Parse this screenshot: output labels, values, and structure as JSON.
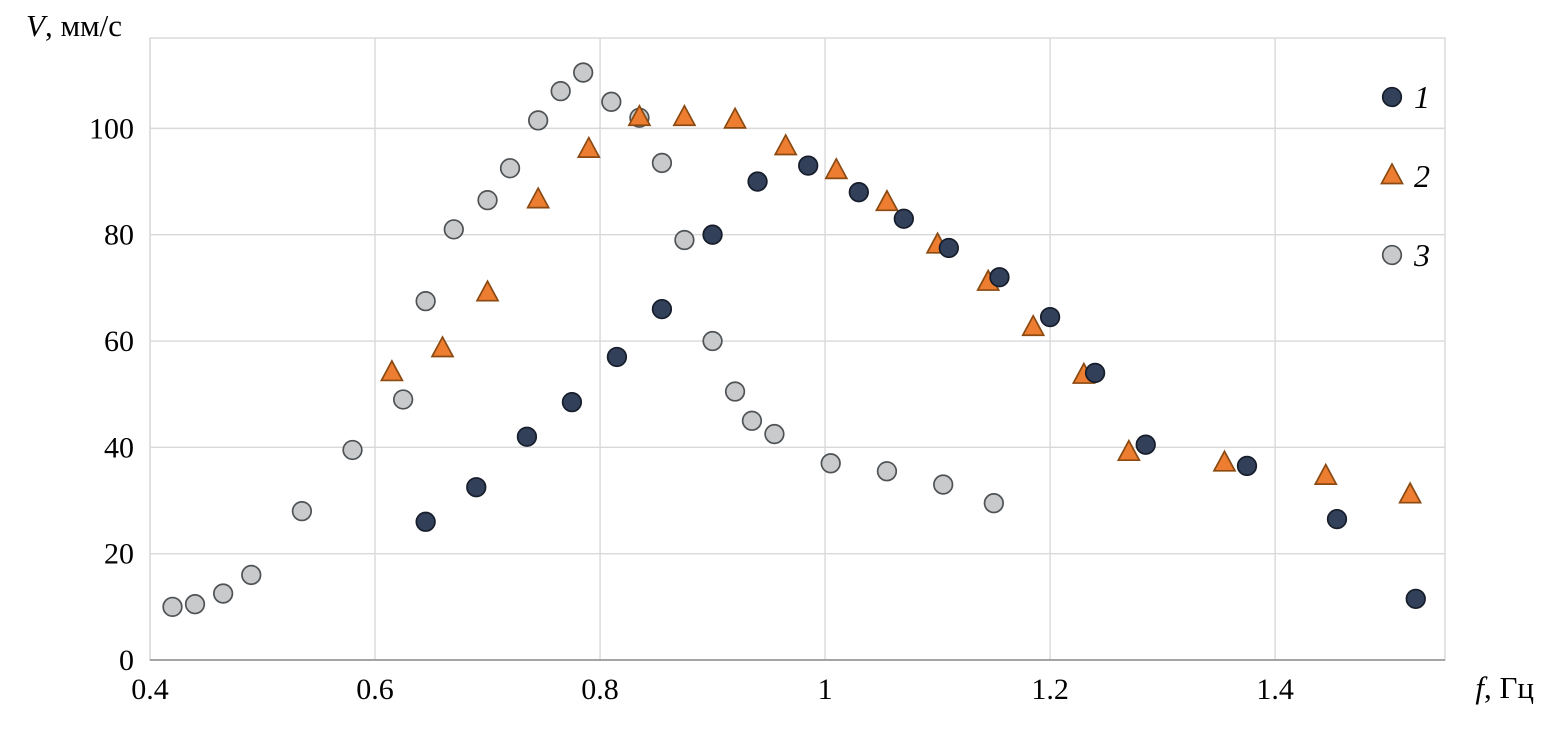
{
  "chart_data": {
    "type": "scatter",
    "title": "",
    "xlabel": "f, Гц",
    "ylabel": "V, мм/с",
    "xlabel_var": "f",
    "xlabel_rest": ", Гц",
    "ylabel_var": "V",
    "ylabel_rest": ", мм/с",
    "xlim": [
      0.4,
      1.551
    ],
    "ylim": [
      0,
      117
    ],
    "x_ticks": [
      0.4,
      0.6,
      0.8,
      1.0,
      1.2,
      1.4
    ],
    "x_tick_labels": [
      "0.4",
      "0.6",
      "0.8",
      "1",
      "1.2",
      "1.4"
    ],
    "y_ticks": [
      0,
      20,
      40,
      60,
      80,
      100
    ],
    "y_tick_labels": [
      "0",
      "20",
      "40",
      "60",
      "80",
      "100"
    ],
    "grid": true,
    "legend_position": "top-right",
    "colors": {
      "grid": "#d9d9d9",
      "axis": "#8c8c8c",
      "text": "#000000",
      "background": "#ffffff"
    },
    "series": [
      {
        "name": "1",
        "marker": "circle",
        "fill": "#33405A",
        "stroke": "#161D2B",
        "points": [
          [
            0.645,
            26
          ],
          [
            0.69,
            32.5
          ],
          [
            0.735,
            42
          ],
          [
            0.775,
            48.5
          ],
          [
            0.815,
            57
          ],
          [
            0.855,
            66
          ],
          [
            0.9,
            80
          ],
          [
            0.94,
            90
          ],
          [
            0.985,
            93
          ],
          [
            1.03,
            88
          ],
          [
            1.07,
            83
          ],
          [
            1.11,
            77.5
          ],
          [
            1.155,
            72
          ],
          [
            1.2,
            64.5
          ],
          [
            1.24,
            54
          ],
          [
            1.285,
            40.5
          ],
          [
            1.375,
            36.5
          ],
          [
            1.455,
            26.5
          ],
          [
            1.525,
            11.5
          ]
        ]
      },
      {
        "name": "2",
        "marker": "triangle",
        "fill": "#ED7D31",
        "stroke": "#8A4A12",
        "points": [
          [
            0.615,
            54
          ],
          [
            0.66,
            58.5
          ],
          [
            0.7,
            69
          ],
          [
            0.745,
            86.5
          ],
          [
            0.79,
            96
          ],
          [
            0.835,
            102
          ],
          [
            0.875,
            102
          ],
          [
            0.92,
            101.5
          ],
          [
            0.965,
            96.5
          ],
          [
            1.01,
            92
          ],
          [
            1.055,
            86
          ],
          [
            1.1,
            78
          ],
          [
            1.145,
            71
          ],
          [
            1.185,
            62.5
          ],
          [
            1.23,
            53.5
          ],
          [
            1.27,
            39
          ],
          [
            1.355,
            37
          ],
          [
            1.445,
            34.5
          ],
          [
            1.52,
            31
          ]
        ]
      },
      {
        "name": "3",
        "marker": "circle",
        "fill": "#C9CACB",
        "stroke": "#4F5356",
        "points": [
          [
            0.42,
            10
          ],
          [
            0.44,
            10.5
          ],
          [
            0.465,
            12.5
          ],
          [
            0.49,
            16
          ],
          [
            0.535,
            28
          ],
          [
            0.58,
            39.5
          ],
          [
            0.625,
            49
          ],
          [
            0.645,
            67.5
          ],
          [
            0.67,
            81
          ],
          [
            0.7,
            86.5
          ],
          [
            0.72,
            92.5
          ],
          [
            0.745,
            101.5
          ],
          [
            0.765,
            107
          ],
          [
            0.785,
            110.5
          ],
          [
            0.81,
            105
          ],
          [
            0.835,
            102
          ],
          [
            0.855,
            93.5
          ],
          [
            0.875,
            79
          ],
          [
            0.9,
            60
          ],
          [
            0.92,
            50.5
          ],
          [
            0.935,
            45
          ],
          [
            0.955,
            42.5
          ],
          [
            1.005,
            37
          ],
          [
            1.055,
            35.5
          ],
          [
            1.105,
            33
          ],
          [
            1.15,
            29.5
          ]
        ]
      }
    ],
    "legend": {
      "items": [
        {
          "label": "1"
        },
        {
          "label": "2"
        },
        {
          "label": "3"
        }
      ]
    }
  }
}
